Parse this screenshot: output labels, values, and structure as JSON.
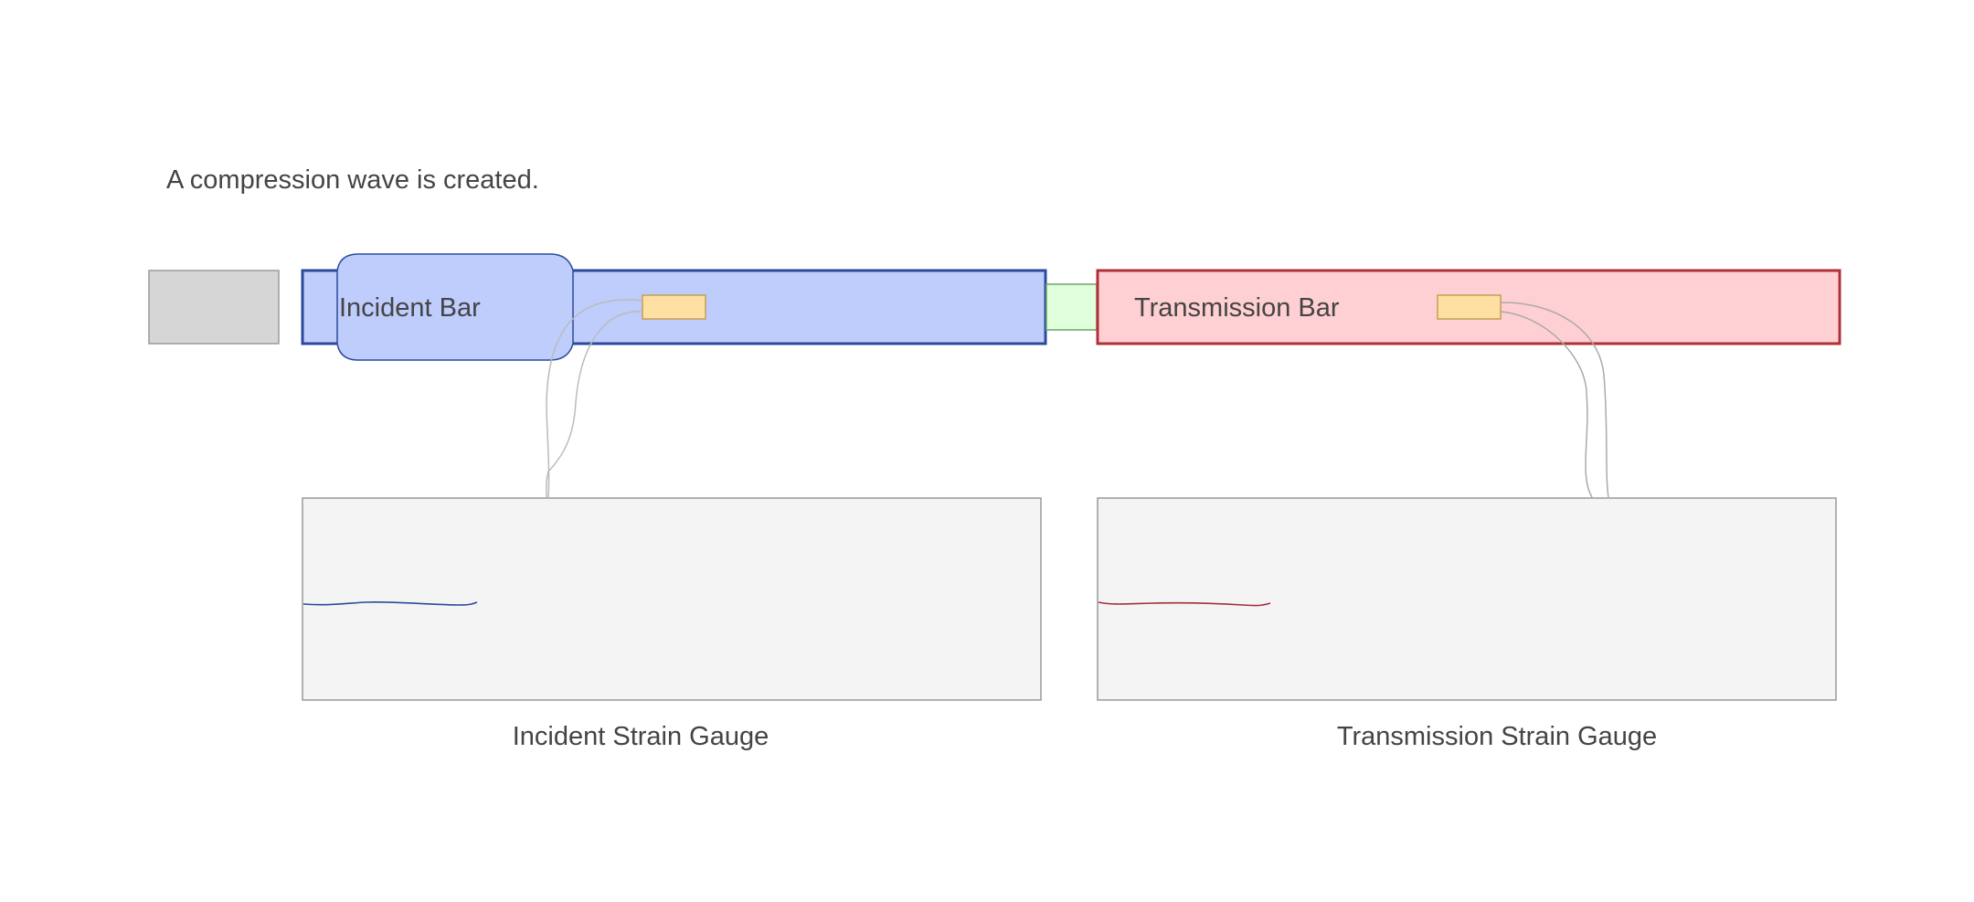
{
  "caption": "A compression wave is created.",
  "incident_bar": {
    "label": "Incident Bar"
  },
  "transmission_bar": {
    "label": "Transmission Bar"
  },
  "incident_gauge": {
    "label": "Incident Strain Gauge"
  },
  "transmission_gauge": {
    "label": "Transmission Strain Gauge"
  },
  "colors": {
    "striker": "#d6d6d6",
    "incident_fill": "#bfcdfd",
    "incident_stroke": "#2b4a9b",
    "specimen_fill": "#e0ffdc",
    "specimen_stroke": "#6aa36a",
    "transmission_fill": "#ffd0d3",
    "transmission_stroke": "#b03038",
    "gauge_fill": "#ffe0a3",
    "gauge_stroke": "#c2a052",
    "panel_fill": "#f4f4f4",
    "panel_stroke": "#999999",
    "incident_signal": "#2b4a9b",
    "transmission_signal": "#a2303a"
  }
}
